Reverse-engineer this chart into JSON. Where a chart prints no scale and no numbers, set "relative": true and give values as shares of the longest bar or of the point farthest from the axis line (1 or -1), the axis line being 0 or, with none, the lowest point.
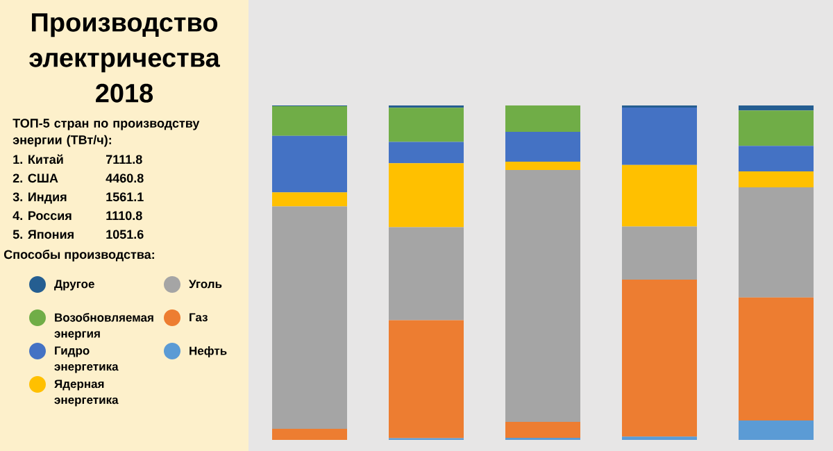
{
  "chart_data": {
    "type": "bar",
    "stacked": true,
    "relative": true,
    "title": "Производство электричества 2018",
    "subtitle": "ТОП-5 стран по производству энергии (ТВт/ч):",
    "annotations": [
      "1. Китай",
      "7111.8",
      "2. США",
      "4460.8",
      "3. Индия",
      "1561.1",
      "4. Россия",
      "1110.8",
      "5. Япония",
      "1051.6"
    ],
    "legend_title": "Способы производства:",
    "legend": "left",
    "categories": [
      null,
      null,
      null,
      null,
      null
    ],
    "series": [
      {
        "name": "Нефть",
        "color": "#5b9bd5",
        "values": [
          0,
          0.005,
          0.006,
          0.01,
          0.058
        ]
      },
      {
        "name": "Газ",
        "color": "#ed7d31",
        "values": [
          0.033,
          0.353,
          0.048,
          0.469,
          0.368
        ]
      },
      {
        "name": "Уголь",
        "color": "#a5a5a5",
        "values": [
          0.665,
          0.278,
          0.753,
          0.159,
          0.329
        ]
      },
      {
        "name": "Ядерная энергетика",
        "color": "#ffc000",
        "values": [
          0.042,
          0.191,
          0.025,
          0.184,
          0.048
        ]
      },
      {
        "name": "Гидро энергетика",
        "color": "#4472c4",
        "values": [
          0.169,
          0.064,
          0.089,
          0.172,
          0.076
        ]
      },
      {
        "name": "Возобновляемая энергия",
        "color": "#70ad47",
        "values": [
          0.089,
          0.102,
          0.079,
          0,
          0.106
        ]
      },
      {
        "name": "Другое",
        "color": "#255e91",
        "values": [
          0.002,
          0.007,
          0,
          0.006,
          0.015
        ]
      }
    ]
  }
}
